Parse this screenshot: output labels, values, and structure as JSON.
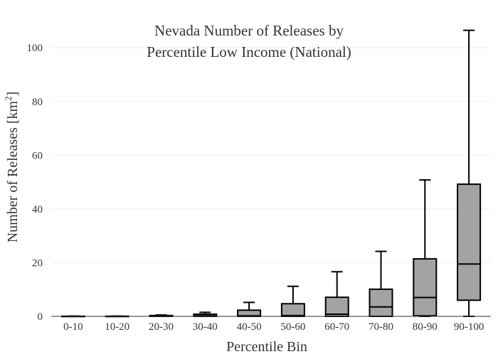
{
  "chart_data": {
    "type": "box",
    "title_lines": [
      "Nevada Number of Releases by",
      "Percentile Low Income (National)"
    ],
    "xlabel": "Percentile Bin",
    "ylabel_main": "Number of Releases  [km",
    "ylabel_sup": "2",
    "ylabel_close": "]",
    "ylim": [
      0,
      108
    ],
    "yticks": [
      0,
      20,
      40,
      60,
      80,
      100
    ],
    "grid": true,
    "categories": [
      "0-10",
      "10-20",
      "20-30",
      "30-40",
      "40-50",
      "50-60",
      "60-70",
      "70-80",
      "80-90",
      "90-100"
    ],
    "boxes": [
      {
        "min": 0,
        "q1": 0,
        "median": 0,
        "q3": 0.05,
        "max": 0.1
      },
      {
        "min": 0,
        "q1": 0,
        "median": 0,
        "q3": 0.05,
        "max": 0.1
      },
      {
        "min": 0,
        "q1": 0,
        "median": 0,
        "q3": 0.3,
        "max": 0.5
      },
      {
        "min": 0,
        "q1": 0,
        "median": 0.2,
        "q3": 0.8,
        "max": 1.5
      },
      {
        "min": 0,
        "q1": 0,
        "median": 0.2,
        "q3": 2.3,
        "max": 5.2
      },
      {
        "min": 0,
        "q1": 0,
        "median": 0.3,
        "q3": 4.7,
        "max": 11.2
      },
      {
        "min": 0,
        "q1": 0,
        "median": 0.8,
        "q3": 7.1,
        "max": 16.6
      },
      {
        "min": 0,
        "q1": 0,
        "median": 3.5,
        "q3": 10.1,
        "max": 24.2
      },
      {
        "min": 0,
        "q1": 0.2,
        "median": 7.0,
        "q3": 21.4,
        "max": 50.8
      },
      {
        "min": 0,
        "q1": 6.0,
        "median": 19.5,
        "q3": 49.2,
        "max": 106.5
      }
    ],
    "colors": {
      "box_fill": "#a3a3a3",
      "box_stroke": "#000000",
      "grid": "#eeeeee",
      "axis": "#333333"
    }
  }
}
